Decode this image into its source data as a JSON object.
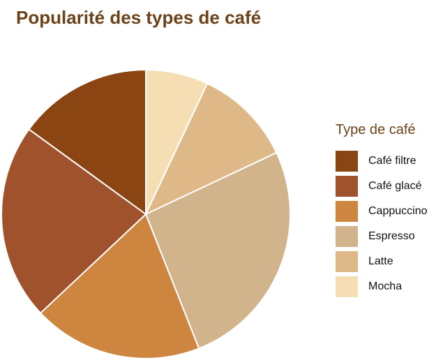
{
  "chart_data": {
    "type": "pie",
    "title": "Popularité des types de café",
    "legend": {
      "title": "Type de café",
      "placement": "right"
    },
    "categories": [
      "Café filtre",
      "Café glacé",
      "Cappuccino",
      "Espresso",
      "Latte",
      "Mocha"
    ],
    "values": [
      15,
      22,
      19,
      26,
      11,
      7
    ],
    "colors": [
      "#8b4513",
      "#a0522d",
      "#cd853f",
      "#d2b48c",
      "#deb887",
      "#f5deb3"
    ],
    "slice_order_clockwise_from_top": [
      "Mocha",
      "Latte",
      "Espresso",
      "Cappuccino",
      "Café glacé",
      "Café filtre"
    ]
  }
}
